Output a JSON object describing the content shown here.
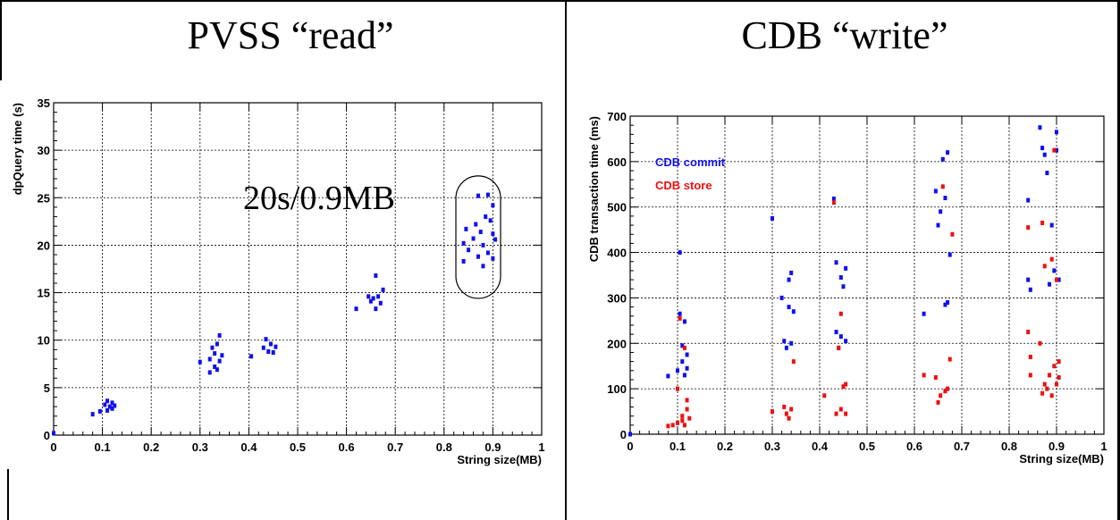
{
  "panels": {
    "left_title": "PVSS “read”",
    "right_title": "CDB “write”",
    "annotation": "20s/0.9MB"
  },
  "chart_data": [
    {
      "type": "scatter",
      "xlabel": "String size(MB)",
      "ylabel": "dpQuery time (s)",
      "xlim": [
        0,
        1
      ],
      "ylim": [
        0,
        35
      ],
      "xticks": [
        "0",
        "0.1",
        "0.2",
        "0.3",
        "0.4",
        "0.5",
        "0.6",
        "0.7",
        "0.8",
        "0.9",
        "1"
      ],
      "yticks": [
        "0",
        "5",
        "10",
        "15",
        "20",
        "25",
        "30",
        "35"
      ],
      "grid": true,
      "series": [
        {
          "color": "#1010ee",
          "points": [
            [
              0.0,
              0.2
            ],
            [
              0.08,
              2.2
            ],
            [
              0.095,
              2.5
            ],
            [
              0.105,
              3.2
            ],
            [
              0.11,
              3.6
            ],
            [
              0.11,
              2.6
            ],
            [
              0.115,
              3.0
            ],
            [
              0.12,
              2.8
            ],
            [
              0.12,
              3.4
            ],
            [
              0.125,
              3.1
            ],
            [
              0.3,
              7.7
            ],
            [
              0.32,
              6.6
            ],
            [
              0.32,
              8.0
            ],
            [
              0.325,
              9.2
            ],
            [
              0.33,
              7.2
            ],
            [
              0.33,
              8.6
            ],
            [
              0.335,
              9.6
            ],
            [
              0.335,
              6.9
            ],
            [
              0.34,
              10.5
            ],
            [
              0.34,
              7.8
            ],
            [
              0.345,
              8.4
            ],
            [
              0.405,
              8.3
            ],
            [
              0.43,
              9.2
            ],
            [
              0.435,
              10.1
            ],
            [
              0.44,
              8.8
            ],
            [
              0.445,
              9.6
            ],
            [
              0.45,
              8.7
            ],
            [
              0.455,
              9.3
            ],
            [
              0.62,
              13.3
            ],
            [
              0.645,
              14.6
            ],
            [
              0.65,
              14.1
            ],
            [
              0.655,
              14.4
            ],
            [
              0.66,
              16.8
            ],
            [
              0.66,
              13.3
            ],
            [
              0.665,
              14.6
            ],
            [
              0.67,
              13.9
            ],
            [
              0.675,
              15.3
            ],
            [
              0.84,
              20.2
            ],
            [
              0.84,
              18.3
            ],
            [
              0.845,
              21.7
            ],
            [
              0.85,
              19.5
            ],
            [
              0.86,
              20.7
            ],
            [
              0.865,
              22.2
            ],
            [
              0.87,
              25.2
            ],
            [
              0.87,
              18.8
            ],
            [
              0.875,
              21.4
            ],
            [
              0.88,
              20.0
            ],
            [
              0.88,
              17.8
            ],
            [
              0.885,
              23.0
            ],
            [
              0.89,
              19.2
            ],
            [
              0.89,
              25.3
            ],
            [
              0.895,
              22.6
            ],
            [
              0.9,
              21.2
            ],
            [
              0.9,
              18.6
            ],
            [
              0.9,
              24.2
            ],
            [
              0.905,
              20.6
            ]
          ]
        }
      ]
    },
    {
      "type": "scatter",
      "xlabel": "String size(MB)",
      "ylabel": "CDB transaction time (ms)",
      "xlim": [
        0,
        1
      ],
      "ylim": [
        0,
        700
      ],
      "xticks": [
        "0",
        "0.1",
        "0.2",
        "0.3",
        "0.4",
        "0.5",
        "0.6",
        "0.7",
        "0.8",
        "0.9",
        "1"
      ],
      "yticks": [
        "0",
        "100",
        "200",
        "300",
        "400",
        "500",
        "600",
        "700"
      ],
      "grid": true,
      "legend": [
        "CDB commit",
        "CDB store"
      ],
      "series": [
        {
          "name": "CDB commit",
          "color": "#1010ee",
          "points": [
            [
              0.0,
              0
            ],
            [
              0.08,
              128
            ],
            [
              0.1,
              140
            ],
            [
              0.105,
              265
            ],
            [
              0.105,
              400
            ],
            [
              0.11,
              160
            ],
            [
              0.11,
              195
            ],
            [
              0.115,
              130
            ],
            [
              0.115,
              248
            ],
            [
              0.12,
              175
            ],
            [
              0.12,
              145
            ],
            [
              0.3,
              475
            ],
            [
              0.32,
              300
            ],
            [
              0.325,
              205
            ],
            [
              0.33,
              190
            ],
            [
              0.335,
              340
            ],
            [
              0.335,
              280
            ],
            [
              0.34,
              355
            ],
            [
              0.34,
              200
            ],
            [
              0.345,
              270
            ],
            [
              0.43,
              518
            ],
            [
              0.435,
              378
            ],
            [
              0.435,
              225
            ],
            [
              0.44,
              190
            ],
            [
              0.445,
              345
            ],
            [
              0.445,
              215
            ],
            [
              0.45,
              325
            ],
            [
              0.455,
              365
            ],
            [
              0.455,
              205
            ],
            [
              0.62,
              265
            ],
            [
              0.645,
              535
            ],
            [
              0.65,
              460
            ],
            [
              0.655,
              490
            ],
            [
              0.66,
              605
            ],
            [
              0.665,
              520
            ],
            [
              0.665,
              285
            ],
            [
              0.67,
              620
            ],
            [
              0.67,
              290
            ],
            [
              0.675,
              395
            ],
            [
              0.84,
              515
            ],
            [
              0.84,
              340
            ],
            [
              0.845,
              318
            ],
            [
              0.865,
              675
            ],
            [
              0.87,
              630
            ],
            [
              0.875,
              615
            ],
            [
              0.88,
              575
            ],
            [
              0.885,
              330
            ],
            [
              0.89,
              460
            ],
            [
              0.895,
              360
            ],
            [
              0.9,
              625
            ],
            [
              0.9,
              665
            ],
            [
              0.905,
              340
            ]
          ]
        },
        {
          "name": "CDB store",
          "color": "#ee1010",
          "points": [
            [
              0.08,
              18
            ],
            [
              0.09,
              20
            ],
            [
              0.1,
              25
            ],
            [
              0.1,
              100
            ],
            [
              0.105,
              255
            ],
            [
              0.11,
              40
            ],
            [
              0.11,
              30
            ],
            [
              0.115,
              20
            ],
            [
              0.115,
              190
            ],
            [
              0.12,
              55
            ],
            [
              0.12,
              75
            ],
            [
              0.125,
              35
            ],
            [
              0.3,
              50
            ],
            [
              0.325,
              60
            ],
            [
              0.33,
              45
            ],
            [
              0.335,
              35
            ],
            [
              0.34,
              55
            ],
            [
              0.345,
              160
            ],
            [
              0.41,
              85
            ],
            [
              0.43,
              510
            ],
            [
              0.435,
              45
            ],
            [
              0.44,
              190
            ],
            [
              0.445,
              55
            ],
            [
              0.445,
              265
            ],
            [
              0.45,
              105
            ],
            [
              0.455,
              45
            ],
            [
              0.455,
              110
            ],
            [
              0.62,
              130
            ],
            [
              0.645,
              125
            ],
            [
              0.65,
              70
            ],
            [
              0.655,
              85
            ],
            [
              0.66,
              545
            ],
            [
              0.665,
              95
            ],
            [
              0.67,
              100
            ],
            [
              0.675,
              165
            ],
            [
              0.68,
              440
            ],
            [
              0.84,
              225
            ],
            [
              0.84,
              455
            ],
            [
              0.845,
              130
            ],
            [
              0.845,
              170
            ],
            [
              0.865,
              200
            ],
            [
              0.87,
              90
            ],
            [
              0.87,
              465
            ],
            [
              0.875,
              110
            ],
            [
              0.875,
              370
            ],
            [
              0.88,
              100
            ],
            [
              0.885,
              130
            ],
            [
              0.89,
              385
            ],
            [
              0.89,
              85
            ],
            [
              0.895,
              625
            ],
            [
              0.895,
              150
            ],
            [
              0.9,
              110
            ],
            [
              0.9,
              340
            ],
            [
              0.905,
              160
            ],
            [
              0.905,
              125
            ]
          ]
        }
      ]
    }
  ]
}
